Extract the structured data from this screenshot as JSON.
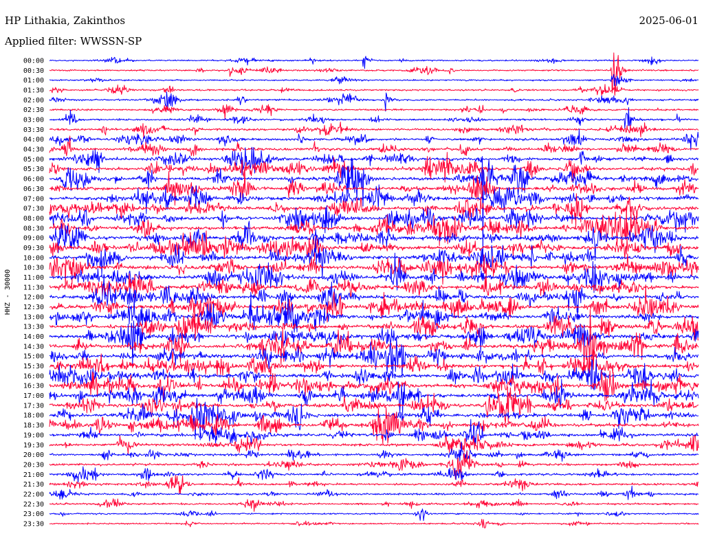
{
  "header": {
    "station": "HP Lithakia, Zakinthos",
    "filter": "Applied filter: WWSSN-SP",
    "date": "2025-06-01",
    "channel": "HHZ - 30000"
  },
  "colors": {
    "even_trace": "#0000ff",
    "odd_trace": "#ff0033",
    "background": "#ffffff",
    "text": "#000000"
  },
  "chart_data": {
    "type": "line",
    "title": "HP Lithakia, Zakinthos",
    "subtitle": "Applied filter: WWSSN-SP",
    "ylabel": "HHZ - 30000",
    "xlabel": "",
    "y_tick_labels": [
      "00:00",
      "00:30",
      "01:00",
      "01:30",
      "02:00",
      "02:30",
      "03:00",
      "03:30",
      "04:00",
      "04:30",
      "05:00",
      "05:30",
      "06:00",
      "06:30",
      "07:00",
      "07:30",
      "08:00",
      "08:30",
      "09:00",
      "09:30",
      "10:00",
      "10:30",
      "11:00",
      "11:30",
      "12:00",
      "12:30",
      "13:00",
      "13:30",
      "14:00",
      "14:30",
      "15:00",
      "15:30",
      "16:00",
      "16:30",
      "17:00",
      "17:30",
      "18:00",
      "18:30",
      "19:00",
      "19:30",
      "20:00",
      "20:30",
      "21:00",
      "21:30",
      "22:00",
      "22:30",
      "23:00",
      "23:30"
    ],
    "trace_minutes": 30,
    "trace_colors": [
      "#0000ff",
      "#ff0033"
    ],
    "noise_level": [
      0.15,
      0.2,
      0.15,
      0.25,
      0.3,
      0.3,
      0.35,
      0.4,
      0.5,
      0.6,
      0.7,
      0.8,
      0.85,
      0.9,
      0.9,
      0.9,
      0.95,
      0.95,
      1.0,
      1.0,
      1.0,
      1.0,
      1.0,
      1.0,
      1.0,
      1.0,
      1.0,
      1.0,
      1.0,
      1.0,
      1.0,
      1.0,
      1.0,
      1.0,
      1.0,
      0.95,
      0.9,
      0.85,
      0.7,
      0.6,
      0.5,
      0.45,
      0.45,
      0.4,
      0.35,
      0.3,
      0.2,
      0.15
    ],
    "events": [
      {
        "trace": 0,
        "minute": 14.5,
        "amplitude": 12
      },
      {
        "trace": 0,
        "minute": 16.2,
        "amplitude": 3
      },
      {
        "trace": 1,
        "minute": 26.0,
        "amplitude": 75
      },
      {
        "trace": 2,
        "minute": 26.0,
        "amplitude": 30
      },
      {
        "trace": 3,
        "minute": 26.1,
        "amplitude": 16
      },
      {
        "trace": 4,
        "minute": 15.5,
        "amplitude": 14
      },
      {
        "trace": 6,
        "minute": 29.0,
        "amplitude": 5
      },
      {
        "trace": 6,
        "minute": 26.6,
        "amplitude": 25
      },
      {
        "trace": 8,
        "minute": 11.5,
        "amplitude": 9
      },
      {
        "trace": 9,
        "minute": 12.2,
        "amplitude": 8
      },
      {
        "trace": 10,
        "minute": 13.4,
        "amplitude": 9
      },
      {
        "trace": 10,
        "minute": 24.5,
        "amplitude": 20
      },
      {
        "trace": 12,
        "minute": 20.0,
        "amplitude": 120
      },
      {
        "trace": 15,
        "minute": 6.7,
        "amplitude": 9
      },
      {
        "trace": 16,
        "minute": 19.7,
        "amplitude": 12
      },
      {
        "trace": 18,
        "minute": 13.5,
        "amplitude": 10
      },
      {
        "trace": 21,
        "minute": 8.2,
        "amplitude": 8
      },
      {
        "trace": 27,
        "minute": 25.5,
        "amplitude": 12
      },
      {
        "trace": 28,
        "minute": 12.8,
        "amplitude": 10
      },
      {
        "trace": 33,
        "minute": 16.3,
        "amplitude": 9
      },
      {
        "trace": 35,
        "minute": 23.5,
        "amplitude": 8
      },
      {
        "trace": 36,
        "minute": 4.3,
        "amplitude": 12
      },
      {
        "trace": 37,
        "minute": 2.7,
        "amplitude": 12
      },
      {
        "trace": 38,
        "minute": 4.0,
        "amplitude": 8
      },
      {
        "trace": 39,
        "minute": 19.1,
        "amplitude": 8
      },
      {
        "trace": 40,
        "minute": 21.6,
        "amplitude": 8
      },
      {
        "trace": 40,
        "minute": 27.5,
        "amplitude": 9
      },
      {
        "trace": 42,
        "minute": 2.0,
        "amplitude": 10
      },
      {
        "trace": 42,
        "minute": 12.6,
        "amplitude": 8
      },
      {
        "trace": 43,
        "minute": 8.7,
        "amplitude": 10
      },
      {
        "trace": 43,
        "minute": 18.9,
        "amplitude": 9
      },
      {
        "trace": 44,
        "minute": 12.8,
        "amplitude": 9
      }
    ]
  }
}
